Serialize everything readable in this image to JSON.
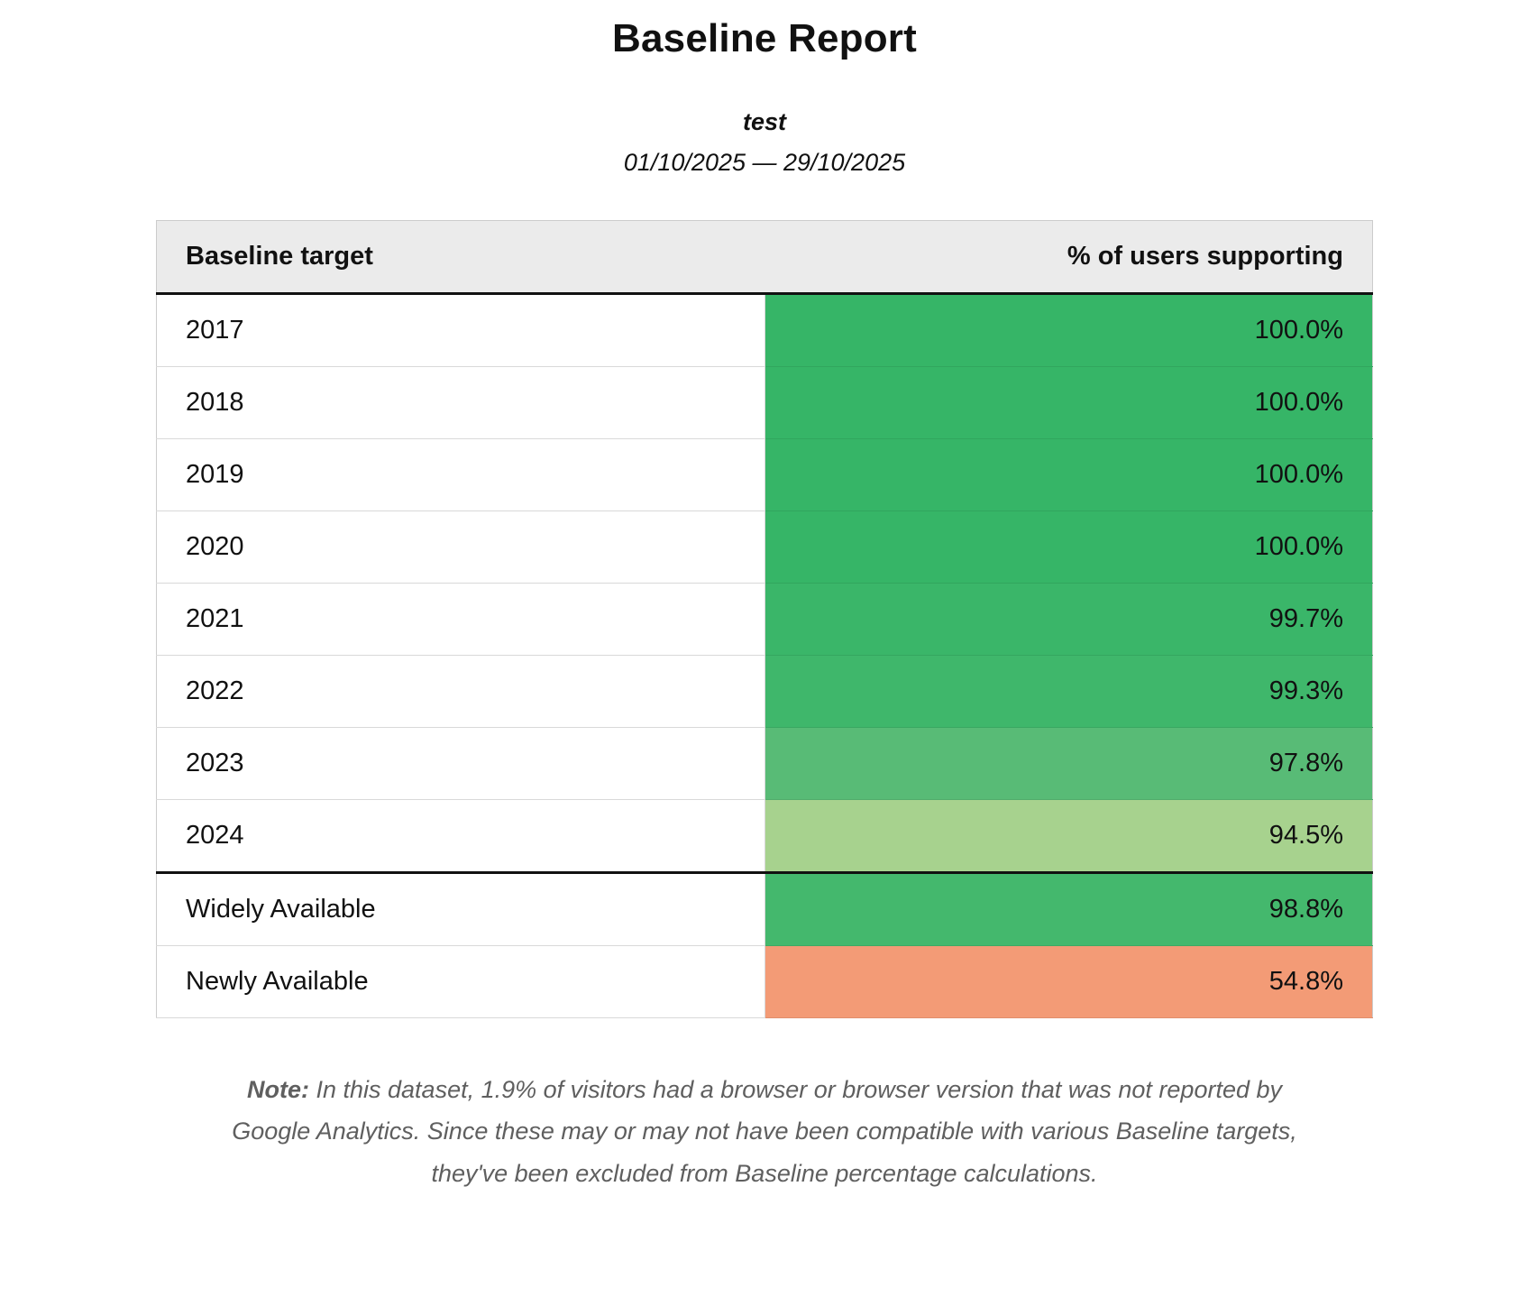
{
  "report": {
    "title": "Baseline Report",
    "subtitle": "test",
    "date_range": "01/10/2025 — 29/10/2025"
  },
  "table": {
    "columns": [
      "Baseline target",
      "% of users supporting"
    ],
    "rows": [
      {
        "target": "2017",
        "value": "100.0%",
        "color": "#36b567",
        "section": "year"
      },
      {
        "target": "2018",
        "value": "100.0%",
        "color": "#36b567",
        "section": "year"
      },
      {
        "target": "2019",
        "value": "100.0%",
        "color": "#36b567",
        "section": "year"
      },
      {
        "target": "2020",
        "value": "100.0%",
        "color": "#36b567",
        "section": "year"
      },
      {
        "target": "2021",
        "value": "99.7%",
        "color": "#3ab669",
        "section": "year"
      },
      {
        "target": "2022",
        "value": "99.3%",
        "color": "#3fb76b",
        "section": "year"
      },
      {
        "target": "2023",
        "value": "97.8%",
        "color": "#58bb76",
        "section": "year"
      },
      {
        "target": "2024",
        "value": "94.5%",
        "color": "#a7d28e",
        "section": "year"
      },
      {
        "target": "Widely Available",
        "value": "98.8%",
        "color": "#44b86d",
        "section": "summary"
      },
      {
        "target": "Newly Available",
        "value": "54.8%",
        "color": "#f39b76",
        "section": "summary"
      }
    ]
  },
  "note": {
    "label": "Note:",
    "text": "In this dataset, 1.9% of visitors had a browser or browser version that was not reported by Google Analytics. Since these may or may not have been compatible with various Baseline targets, they've been excluded from Baseline percentage calculations."
  }
}
